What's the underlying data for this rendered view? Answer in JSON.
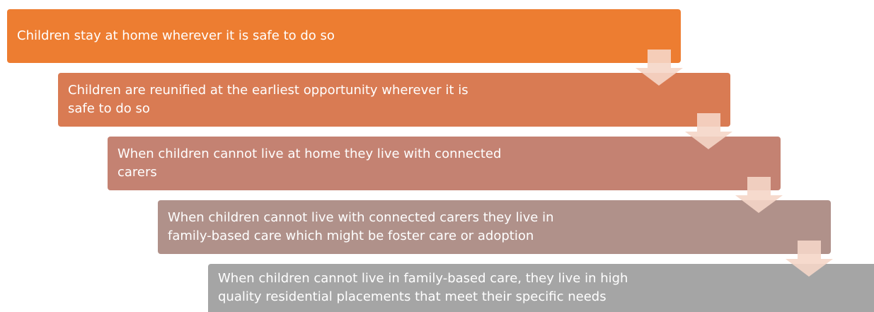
{
  "steps": [
    {
      "lines": [
        "Children stay at home wherever it is safe to do so"
      ]
    },
    {
      "lines": [
        "Children are reunified at the earliest opportunity wherever it is",
        "safe to do so"
      ]
    },
    {
      "lines": [
        "When children cannot live at home they live with connected",
        "carers"
      ]
    },
    {
      "lines": [
        "When children cannot live with connected carers they live in",
        "family-based care which might be foster care or adoption"
      ]
    },
    {
      "lines": [
        "When children cannot live in family-based care, they live in high",
        "quality residential placements that meet their specific needs"
      ]
    }
  ]
}
